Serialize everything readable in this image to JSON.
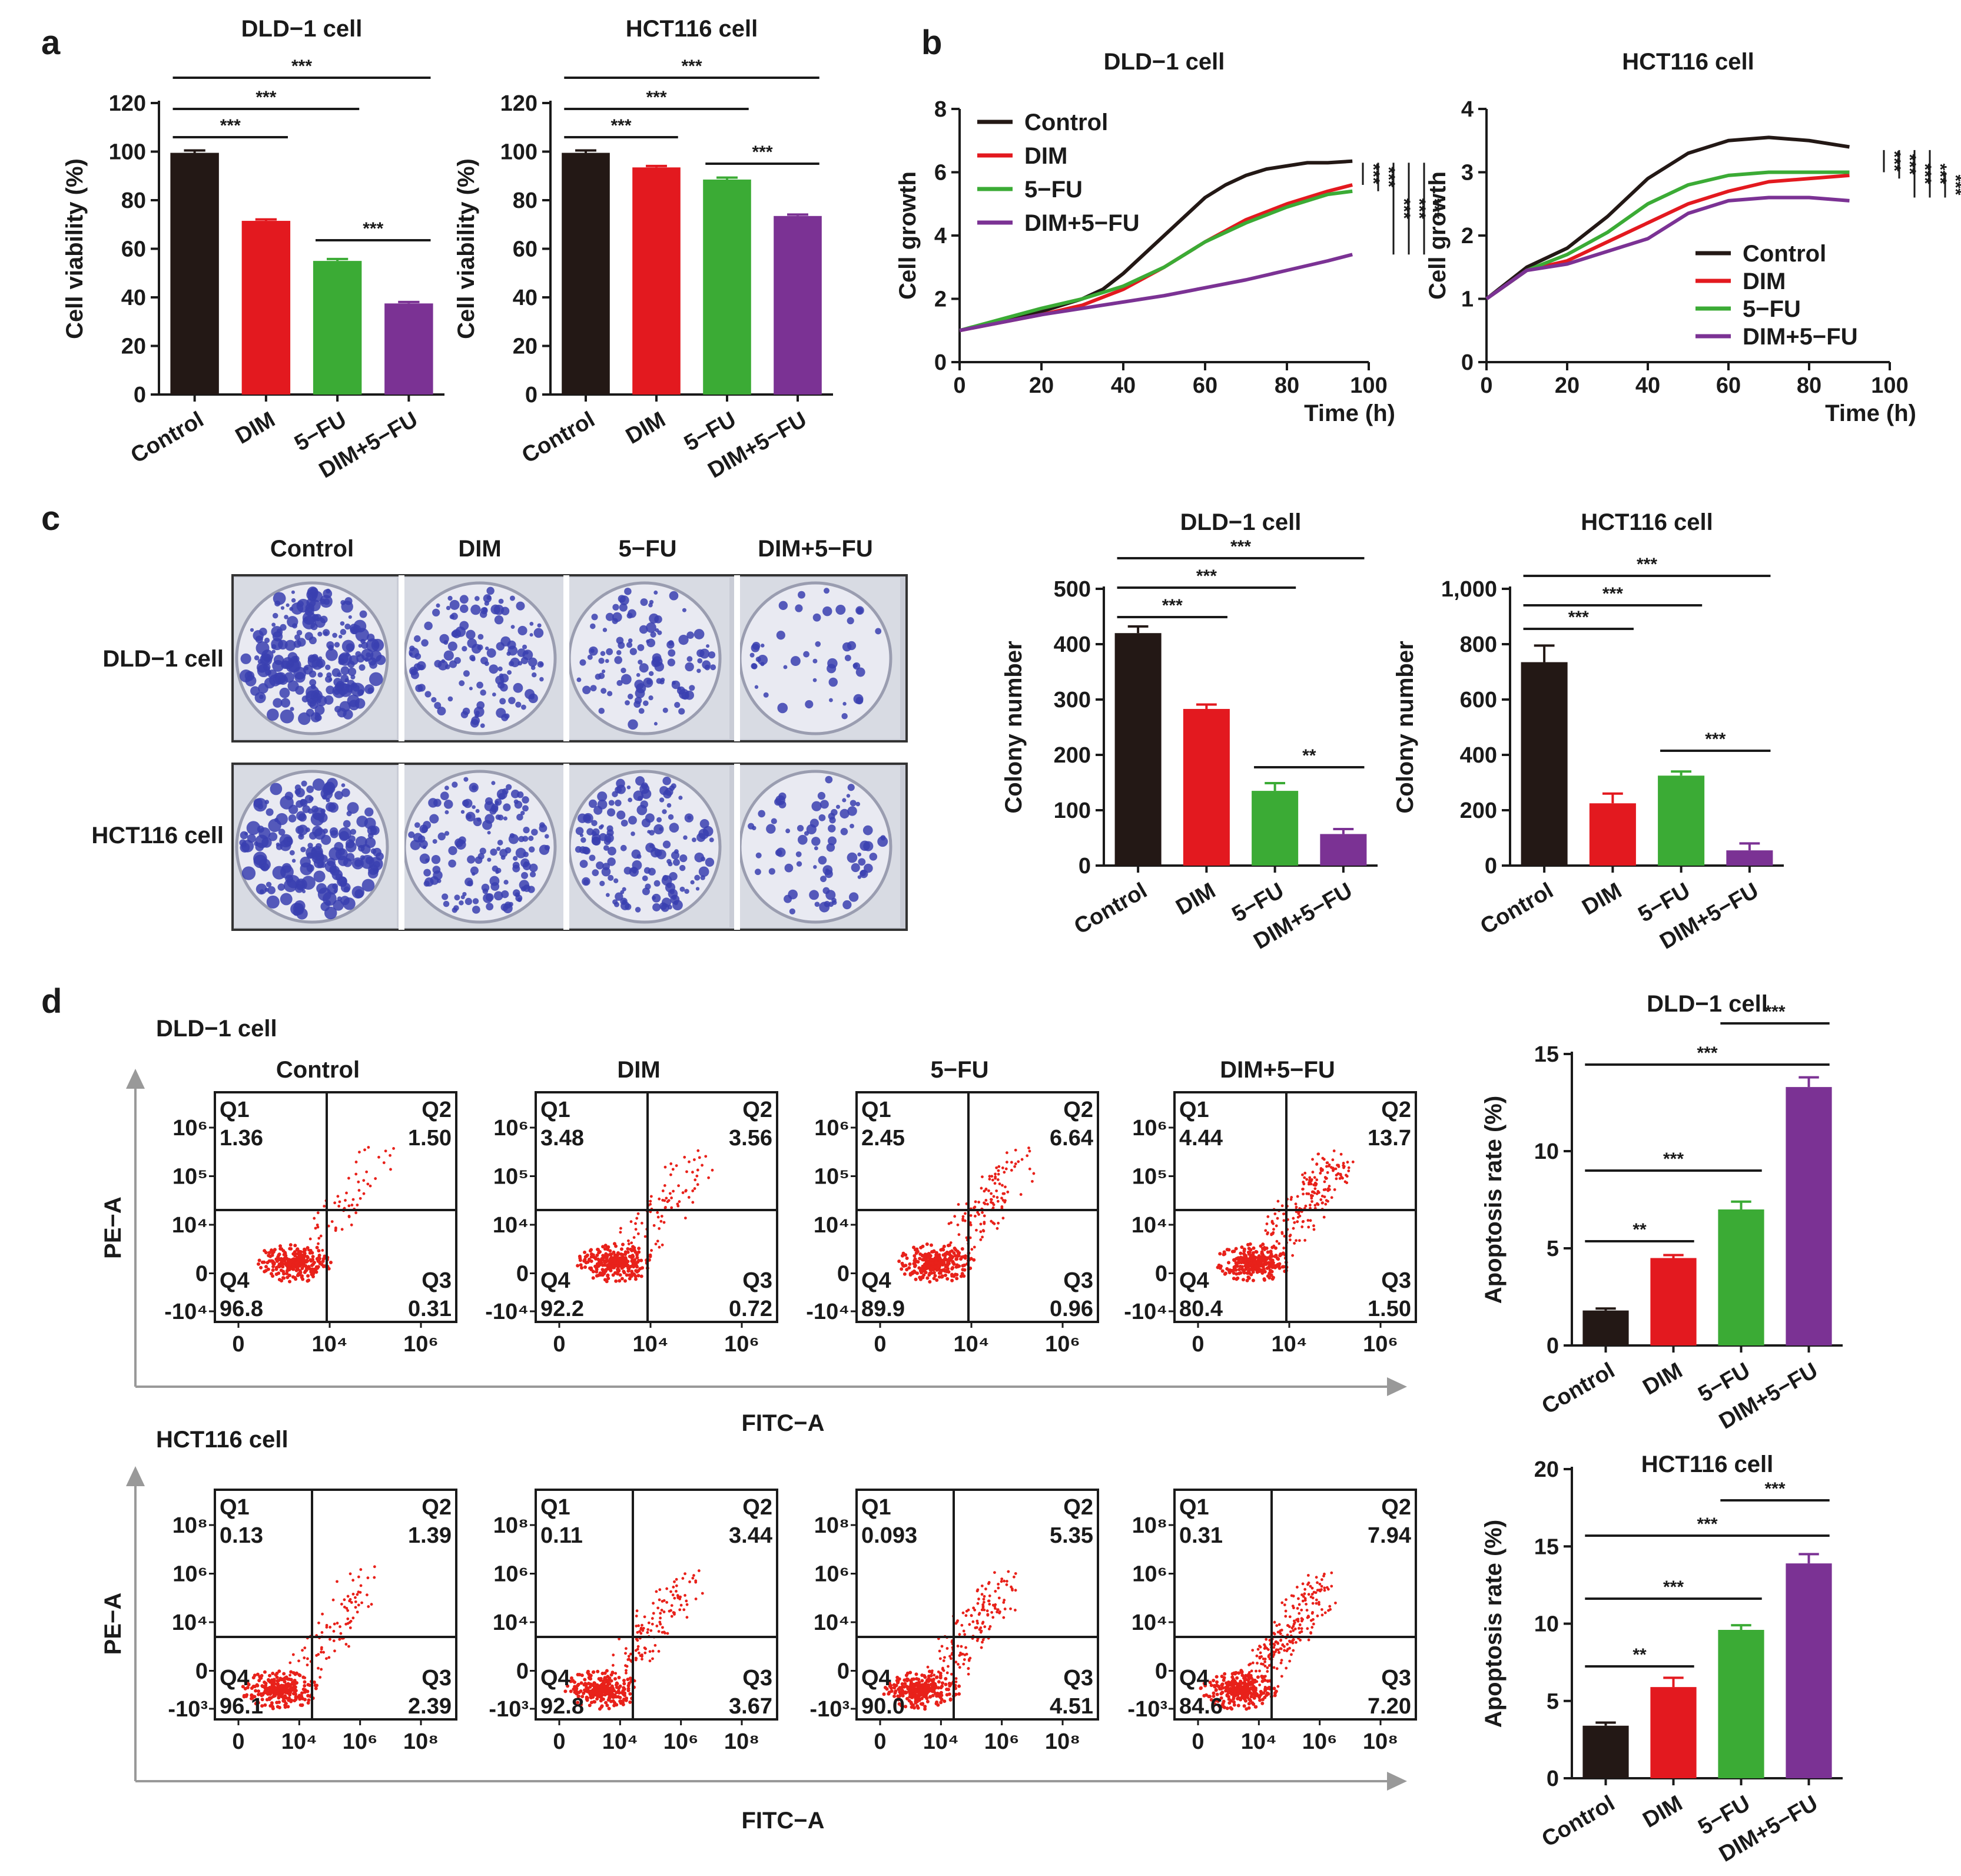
{
  "panel_labels": {
    "a": "a",
    "b": "b",
    "c": "c",
    "d": "d"
  },
  "colors": {
    "Control": "#231815",
    "DIM": "#e3191f",
    "5-FU": "#3bab35",
    "DIM+5-FU": "#7b3294",
    "dots": "#e8211a",
    "well_stain": "#3a3fb0"
  },
  "chart_data": [
    {
      "id": "a_dld1",
      "type": "bar",
      "title": "DLD−1 cell",
      "ylabel": "Cell viability (%)",
      "categories": [
        "Control",
        "DIM",
        "5−FU",
        "DIM+5−FU"
      ],
      "values": [
        99.5,
        71.5,
        55,
        37.5
      ],
      "errors": [
        1,
        0.6,
        0.8,
        0.6
      ],
      "ylim": [
        0,
        120
      ],
      "yticks": [
        "0",
        "20",
        "40",
        "60",
        "80",
        "100",
        "120"
      ],
      "significance": [
        {
          "from": 0,
          "to": 1,
          "label": "***"
        },
        {
          "from": 0,
          "to": 2,
          "label": "***"
        },
        {
          "from": 0,
          "to": 3,
          "label": "***"
        },
        {
          "from": 2,
          "to": 3,
          "label": "***"
        }
      ]
    },
    {
      "id": "a_hct116",
      "type": "bar",
      "title": "HCT116 cell",
      "ylabel": "Cell viability (%)",
      "categories": [
        "Control",
        "DIM",
        "5−FU",
        "DIM+5−FU"
      ],
      "values": [
        99.5,
        93.5,
        88.5,
        73.5
      ],
      "errors": [
        1,
        0.6,
        0.8,
        0.6
      ],
      "ylim": [
        0,
        120
      ],
      "yticks": [
        "0",
        "20",
        "40",
        "60",
        "80",
        "100",
        "120"
      ],
      "significance": [
        {
          "from": 0,
          "to": 1,
          "label": "***"
        },
        {
          "from": 0,
          "to": 2,
          "label": "***"
        },
        {
          "from": 0,
          "to": 3,
          "label": "***"
        },
        {
          "from": 2,
          "to": 3,
          "label": "***"
        }
      ]
    },
    {
      "id": "b_dld1",
      "type": "line",
      "title": "DLD−1 cell",
      "ylabel": "Cell growth",
      "xlabel": "Time (h)",
      "xlim": [
        0,
        100
      ],
      "ylim": [
        0,
        8
      ],
      "xticks": [
        "0",
        "20",
        "40",
        "60",
        "80",
        "100"
      ],
      "yticks": [
        "0",
        "2",
        "4",
        "6",
        "8"
      ],
      "legend": "top-left",
      "series": [
        {
          "name": "Control",
          "x": [
            0,
            10,
            20,
            30,
            35,
            40,
            45,
            50,
            55,
            60,
            65,
            70,
            75,
            80,
            85,
            90,
            96
          ],
          "y": [
            1.0,
            1.3,
            1.6,
            2.0,
            2.3,
            2.8,
            3.4,
            4.0,
            4.6,
            5.2,
            5.6,
            5.9,
            6.1,
            6.2,
            6.3,
            6.3,
            6.35
          ]
        },
        {
          "name": "DIM",
          "x": [
            0,
            10,
            20,
            30,
            40,
            50,
            60,
            70,
            80,
            90,
            96
          ],
          "y": [
            1.0,
            1.25,
            1.5,
            1.8,
            2.3,
            3.0,
            3.8,
            4.5,
            5.0,
            5.4,
            5.6
          ]
        },
        {
          "name": "5−FU",
          "x": [
            0,
            10,
            20,
            30,
            40,
            50,
            60,
            70,
            80,
            90,
            96
          ],
          "y": [
            1.0,
            1.35,
            1.7,
            2.0,
            2.4,
            3.0,
            3.8,
            4.4,
            4.9,
            5.3,
            5.4
          ]
        },
        {
          "name": "DIM+5−FU",
          "x": [
            0,
            10,
            20,
            30,
            40,
            50,
            60,
            70,
            80,
            90,
            96
          ],
          "y": [
            1.0,
            1.25,
            1.5,
            1.7,
            1.9,
            2.1,
            2.35,
            2.6,
            2.9,
            3.2,
            3.4
          ]
        }
      ],
      "significance": [
        "***",
        "***",
        "***",
        "***",
        "***"
      ]
    },
    {
      "id": "b_hct116",
      "type": "line",
      "title": "HCT116 cell",
      "ylabel": "Cell growth",
      "xlabel": "Time (h)",
      "xlim": [
        0,
        100
      ],
      "ylim": [
        0,
        4
      ],
      "xticks": [
        "0",
        "20",
        "40",
        "60",
        "80",
        "100"
      ],
      "yticks": [
        "0",
        "1",
        "2",
        "3",
        "4"
      ],
      "legend": "bottom-right",
      "series": [
        {
          "name": "Control",
          "x": [
            0,
            10,
            20,
            30,
            40,
            50,
            60,
            70,
            80,
            90
          ],
          "y": [
            1.0,
            1.5,
            1.8,
            2.3,
            2.9,
            3.3,
            3.5,
            3.55,
            3.5,
            3.4
          ]
        },
        {
          "name": "DIM",
          "x": [
            0,
            10,
            20,
            30,
            40,
            50,
            60,
            70,
            80,
            90
          ],
          "y": [
            1.0,
            1.45,
            1.6,
            1.9,
            2.2,
            2.5,
            2.7,
            2.85,
            2.9,
            2.95
          ]
        },
        {
          "name": "5−FU",
          "x": [
            0,
            10,
            20,
            30,
            40,
            50,
            60,
            70,
            80,
            90
          ],
          "y": [
            1.0,
            1.45,
            1.7,
            2.05,
            2.5,
            2.8,
            2.95,
            3.0,
            3.0,
            3.0
          ]
        },
        {
          "name": "DIM+5−FU",
          "x": [
            0,
            10,
            20,
            30,
            40,
            50,
            60,
            70,
            80,
            90
          ],
          "y": [
            1.0,
            1.45,
            1.55,
            1.75,
            1.95,
            2.35,
            2.55,
            2.6,
            2.6,
            2.55
          ]
        }
      ],
      "significance": [
        "***",
        "***",
        "***",
        "***",
        "***"
      ]
    },
    {
      "id": "c_dld1",
      "type": "bar",
      "title": "DLD−1 cell",
      "ylabel": "Colony number",
      "categories": [
        "Control",
        "DIM",
        "5−FU",
        "DIM+5−FU"
      ],
      "values": [
        420,
        283,
        135,
        57
      ],
      "errors": [
        12,
        8,
        14,
        9
      ],
      "ylim": [
        0,
        500
      ],
      "yticks": [
        "0",
        "100",
        "200",
        "300",
        "400",
        "500"
      ],
      "significance": [
        {
          "from": 0,
          "to": 1,
          "label": "***"
        },
        {
          "from": 0,
          "to": 2,
          "label": "***"
        },
        {
          "from": 0,
          "to": 3,
          "label": "***"
        },
        {
          "from": 2,
          "to": 3,
          "label": "**"
        }
      ]
    },
    {
      "id": "c_hct116",
      "type": "bar",
      "title": "HCT116 cell",
      "ylabel": "Colony number",
      "categories": [
        "Control",
        "DIM",
        "5−FU",
        "DIM+5−FU"
      ],
      "values": [
        735,
        225,
        325,
        55
      ],
      "errors": [
        60,
        35,
        15,
        25
      ],
      "ylim": [
        0,
        1000
      ],
      "yticks": [
        "0",
        "200",
        "400",
        "600",
        "800",
        "1,000"
      ],
      "significance": [
        {
          "from": 0,
          "to": 1,
          "label": "***"
        },
        {
          "from": 0,
          "to": 2,
          "label": "***"
        },
        {
          "from": 0,
          "to": 3,
          "label": "***"
        },
        {
          "from": 2,
          "to": 3,
          "label": "***"
        }
      ]
    },
    {
      "id": "d_dld1_bar",
      "type": "bar",
      "title": "DLD−1 cell",
      "ylabel": "Apoptosis rate (%)",
      "categories": [
        "Control",
        "DIM",
        "5−FU",
        "DIM+5−FU"
      ],
      "values": [
        1.8,
        4.5,
        7.0,
        13.3
      ],
      "errors": [
        0.1,
        0.15,
        0.4,
        0.5
      ],
      "ylim": [
        0,
        15
      ],
      "yticks": [
        "0",
        "5",
        "10",
        "15"
      ],
      "significance": [
        {
          "from": 0,
          "to": 1,
          "label": "**"
        },
        {
          "from": 0,
          "to": 2,
          "label": "***"
        },
        {
          "from": 0,
          "to": 3,
          "label": "***"
        },
        {
          "from": 2,
          "to": 3,
          "label": "***"
        }
      ]
    },
    {
      "id": "d_hct116_bar",
      "type": "bar",
      "title": "HCT116 cell",
      "ylabel": "Apoptosis rate (%)",
      "categories": [
        "Control",
        "DIM",
        "5−FU",
        "DIM+5−FU"
      ],
      "values": [
        3.4,
        5.9,
        9.6,
        13.9
      ],
      "errors": [
        0.2,
        0.6,
        0.3,
        0.6
      ],
      "ylim": [
        0,
        20
      ],
      "yticks": [
        "0",
        "5",
        "10",
        "15",
        "20"
      ],
      "significance": [
        {
          "from": 0,
          "to": 1,
          "label": "**"
        },
        {
          "from": 0,
          "to": 2,
          "label": "***"
        },
        {
          "from": 0,
          "to": 3,
          "label": "***"
        },
        {
          "from": 2,
          "to": 3,
          "label": "***"
        }
      ]
    }
  ],
  "colony_panel": {
    "columns": [
      "Control",
      "DIM",
      "5−FU",
      "DIM+5−FU"
    ],
    "rows": [
      "DLD−1 cell",
      "HCT116 cell"
    ]
  },
  "flow_cytometry": {
    "x_axis_label": "FITC−A",
    "y_axis_label": "PE−A",
    "quadrant_labels": [
      "Q1",
      "Q2",
      "Q3",
      "Q4"
    ],
    "treatments": [
      "Control",
      "DIM",
      "5−FU",
      "DIM+5−FU"
    ],
    "dld1": {
      "label": "DLD−1 cell",
      "y_ticks": [
        "10⁶",
        "10⁵",
        "10⁴",
        "0",
        "-10⁴"
      ],
      "x_ticks": [
        "0",
        "10⁴",
        "10⁶"
      ],
      "plots": [
        {
          "q1": "1.36",
          "q2": "1.50",
          "q3": "0.31",
          "q4": "96.8"
        },
        {
          "q1": "3.48",
          "q2": "3.56",
          "q3": "0.72",
          "q4": "92.2"
        },
        {
          "q1": "2.45",
          "q2": "6.64",
          "q3": "0.96",
          "q4": "89.9"
        },
        {
          "q1": "4.44",
          "q2": "13.7",
          "q3": "1.50",
          "q4": "80.4"
        }
      ]
    },
    "hct116": {
      "label": "HCT116 cell",
      "y_ticks": [
        "10⁸",
        "10⁶",
        "10⁴",
        "0",
        "-10³"
      ],
      "x_ticks": [
        "0",
        "10⁴",
        "10⁶",
        "10⁸"
      ],
      "plots": [
        {
          "q1": "0.13",
          "q2": "1.39",
          "q3": "2.39",
          "q4": "96.1"
        },
        {
          "q1": "0.11",
          "q2": "3.44",
          "q3": "3.67",
          "q4": "92.8"
        },
        {
          "q1": "0.093",
          "q2": "5.35",
          "q3": "4.51",
          "q4": "90.0"
        },
        {
          "q1": "0.31",
          "q2": "7.94",
          "q3": "7.20",
          "q4": "84.6"
        }
      ]
    }
  }
}
